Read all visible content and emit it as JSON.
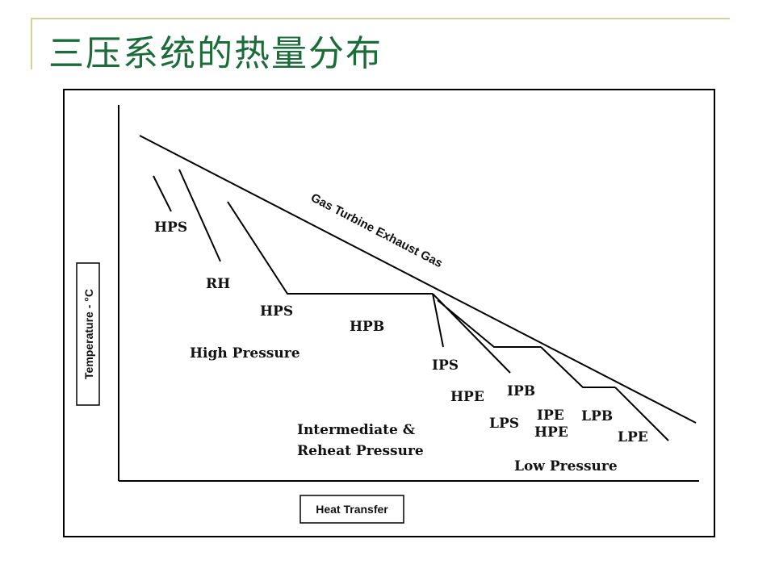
{
  "slide": {
    "title": "三压系统的热量分布"
  },
  "diagram": {
    "gas_line_label": "Gas Turbine Exhaust Gas",
    "y_axis_label": "Temperature - °C",
    "x_axis_label": "Heat Transfer",
    "labels": {
      "hps_top": "HPS",
      "rh": "RH",
      "hps_mid": "HPS",
      "hpb": "HPB",
      "high_pressure": "High Pressure",
      "ips": "IPS",
      "hpe_mid": "HPE",
      "ipb": "IPB",
      "lps": "LPS",
      "ipe": "IPE",
      "hpe_low": "HPE",
      "lpb": "LPB",
      "lpe": "LPE",
      "intermediate_line1": "Intermediate &",
      "intermediate_line2": "Reheat Pressure",
      "low_pressure": "Low Pressure"
    }
  }
}
